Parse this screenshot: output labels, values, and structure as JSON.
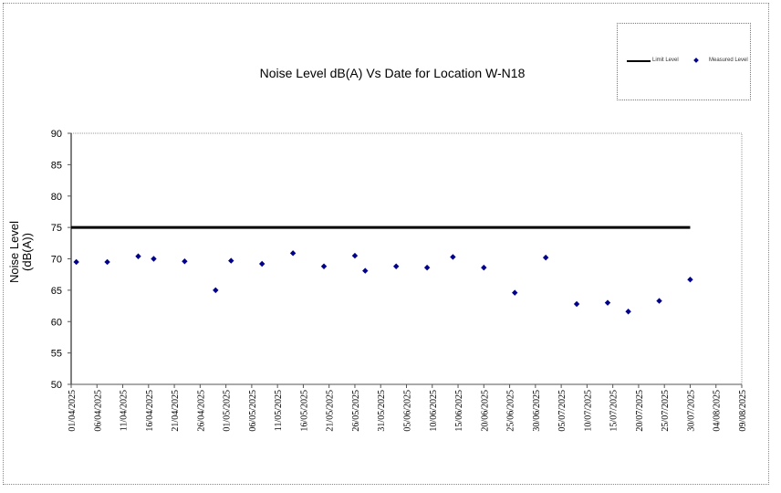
{
  "chart_data": {
    "type": "scatter",
    "title": "Noise Level dB(A) Vs Date for Location W-N18",
    "xlabel": "",
    "ylabel": "Noise Level (dB(A))",
    "ylim": [
      50,
      90
    ],
    "yticks": [
      50,
      55,
      60,
      65,
      70,
      75,
      80,
      85,
      90
    ],
    "xlim": [
      "01/04/2025",
      "09/08/2025"
    ],
    "xticks": [
      "01/04/2025",
      "06/04/2025",
      "11/04/2025",
      "16/04/2025",
      "21/04/2025",
      "26/04/2025",
      "01/05/2025",
      "06/05/2025",
      "11/05/2025",
      "16/05/2025",
      "21/05/2025",
      "26/05/2025",
      "31/05/2025",
      "05/06/2025",
      "10/06/2025",
      "15/06/2025",
      "20/06/2025",
      "25/06/2025",
      "30/06/2025",
      "05/07/2025",
      "10/07/2025",
      "15/07/2025",
      "20/07/2025",
      "25/07/2025",
      "30/07/2025",
      "04/08/2025",
      "09/08/2025"
    ],
    "grid": false,
    "legend_position": "top-right",
    "series": [
      {
        "name": "Limit Level",
        "type": "line",
        "color": "#000000",
        "x": [
          "01/04/2025",
          "30/07/2025"
        ],
        "y": [
          75,
          75
        ]
      },
      {
        "name": "Measured Level",
        "type": "scatter",
        "color": "#00008b",
        "x": [
          "02/04/2025",
          "08/04/2025",
          "14/04/2025",
          "17/04/2025",
          "23/04/2025",
          "29/04/2025",
          "02/05/2025",
          "08/05/2025",
          "14/05/2025",
          "20/05/2025",
          "26/05/2025",
          "28/05/2025",
          "03/06/2025",
          "09/06/2025",
          "14/06/2025",
          "20/06/2025",
          "26/06/2025",
          "02/07/2025",
          "08/07/2025",
          "14/07/2025",
          "18/07/2025",
          "24/07/2025",
          "30/07/2025"
        ],
        "y": [
          69.5,
          69.5,
          70.4,
          70.0,
          69.6,
          65.0,
          69.7,
          69.2,
          70.9,
          68.8,
          70.5,
          68.1,
          68.8,
          68.6,
          70.3,
          68.6,
          64.6,
          70.2,
          62.8,
          63.0,
          61.6,
          63.3,
          66.7
        ]
      }
    ]
  }
}
